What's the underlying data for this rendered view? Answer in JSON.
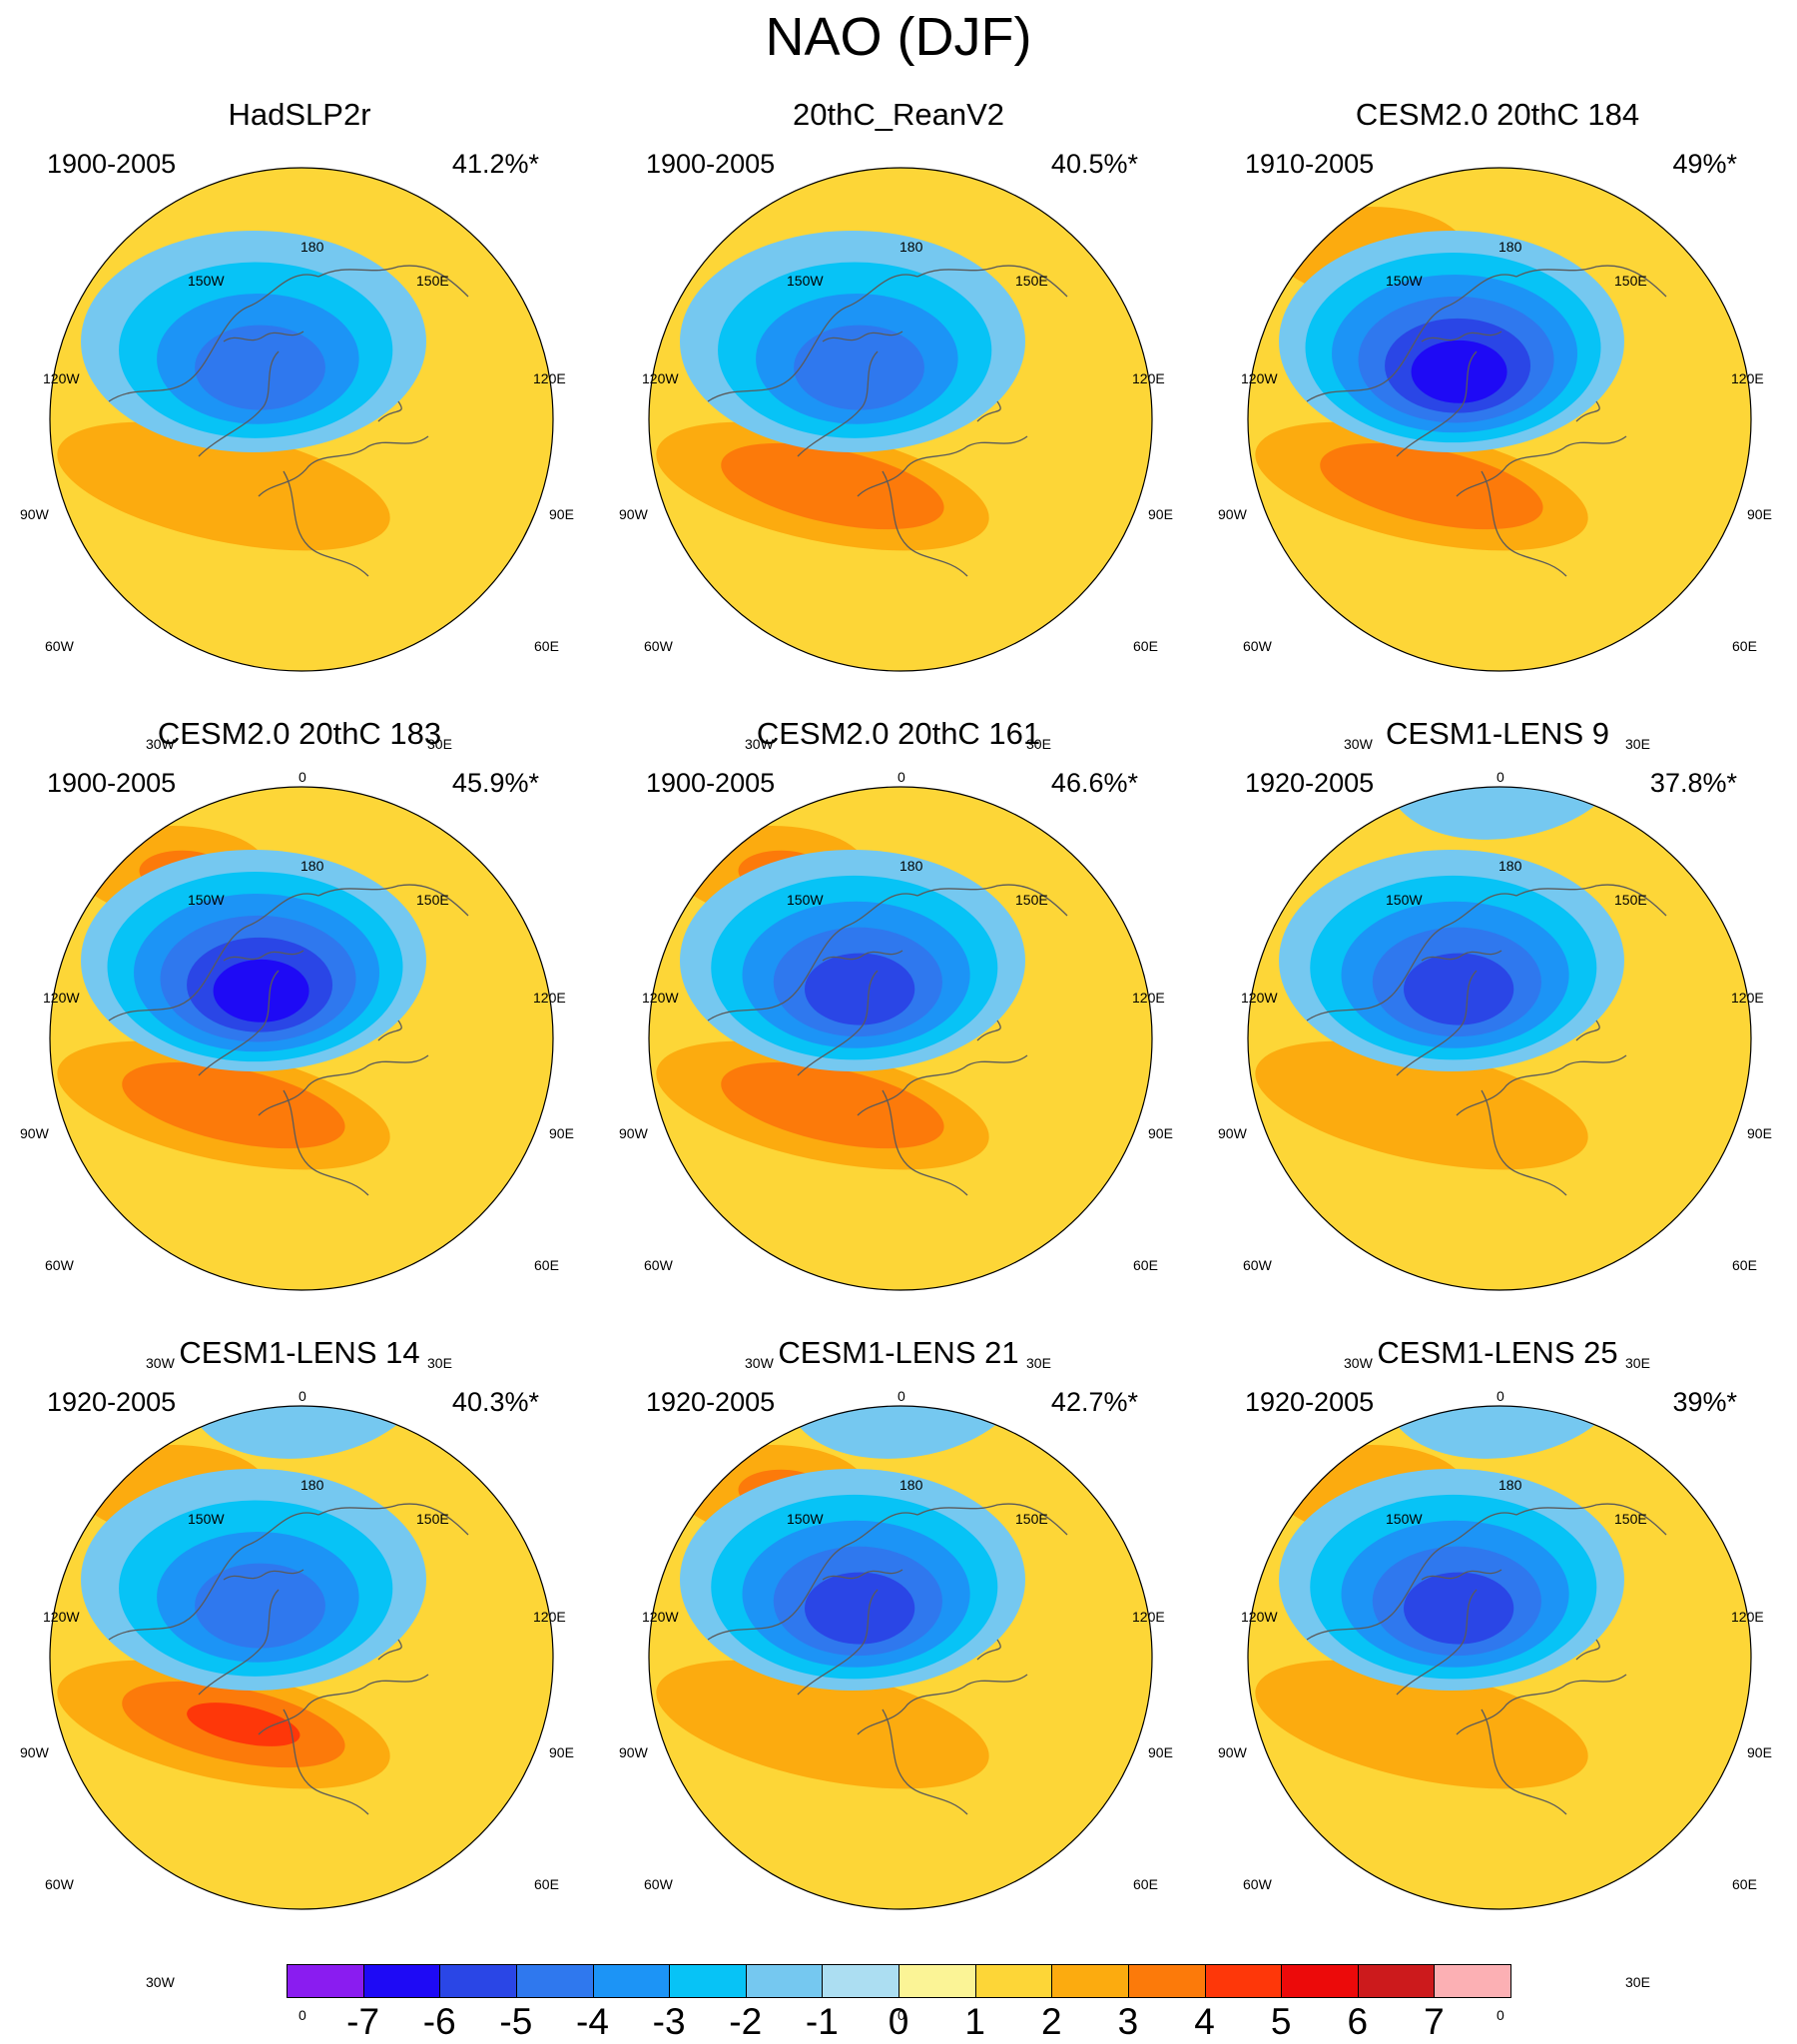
{
  "title": "NAO (DJF)",
  "lon_labels": [
    "180",
    "150W",
    "150E",
    "120W",
    "120E",
    "90W",
    "90E",
    "60W",
    "60E",
    "30W",
    "30E",
    "0"
  ],
  "panels": [
    {
      "name": "HadSLP2r",
      "period": "1900-2005",
      "pct": "41.2%*",
      "pacific_pos": false,
      "pacific_peak": 0,
      "neg_min": -4,
      "pos_max": 2,
      "ne_blue": false,
      "nw_blue": false
    },
    {
      "name": "20thC_ReanV2",
      "period": "1900-2005",
      "pct": "40.5%*",
      "pacific_pos": false,
      "pacific_peak": 0,
      "neg_min": -4,
      "pos_max": 3,
      "ne_blue": true,
      "nw_blue": false
    },
    {
      "name": "CESM2.0 20thC 184",
      "period": "1910-2005",
      "pct": "49%*",
      "pacific_pos": true,
      "pacific_peak": 1,
      "neg_min": -6,
      "pos_max": 3,
      "ne_blue": true,
      "nw_blue": false
    },
    {
      "name": "CESM2.0 20thC 183",
      "period": "1900-2005",
      "pct": "45.9%*",
      "pacific_pos": true,
      "pacific_peak": 2,
      "neg_min": -6,
      "pos_max": 3,
      "ne_blue": false,
      "nw_blue": false
    },
    {
      "name": "CESM2.0 20thC 161",
      "period": "1900-2005",
      "pct": "46.6%*",
      "pacific_pos": true,
      "pacific_peak": 2,
      "neg_min": -5,
      "pos_max": 3,
      "ne_blue": true,
      "nw_blue": false
    },
    {
      "name": "CESM1-LENS 9",
      "period": "1920-2005",
      "pct": "37.8%*",
      "pacific_pos": false,
      "pacific_peak": 0,
      "neg_min": -5,
      "pos_max": 2,
      "ne_blue": true,
      "nw_blue": true
    },
    {
      "name": "CESM1-LENS 14",
      "period": "1920-2005",
      "pct": "40.3%*",
      "pacific_pos": true,
      "pacific_peak": 1,
      "neg_min": -4,
      "pos_max": 4,
      "ne_blue": true,
      "nw_blue": true
    },
    {
      "name": "CESM1-LENS 21",
      "period": "1920-2005",
      "pct": "42.7%*",
      "pacific_pos": true,
      "pacific_peak": 2,
      "neg_min": -5,
      "pos_max": 2,
      "ne_blue": true,
      "nw_blue": true
    },
    {
      "name": "CESM1-LENS 25",
      "period": "1920-2005",
      "pct": "39%*",
      "pacific_pos": true,
      "pacific_peak": 1,
      "neg_min": -5,
      "pos_max": 2,
      "ne_blue": true,
      "nw_blue": true
    }
  ],
  "colorbar": {
    "labels": [
      "-7",
      "-6",
      "-5",
      "-4",
      "-3",
      "-2",
      "-1",
      "0",
      "1",
      "2",
      "3",
      "4",
      "5",
      "6",
      "7"
    ],
    "colors": [
      "#8a1cf0",
      "#1e0af5",
      "#2a46e6",
      "#2f78ee",
      "#1c94f6",
      "#07c3f6",
      "#75c8f0",
      "#acdef2",
      "#fbf496",
      "#fdd637",
      "#fcab0f",
      "#fc7a0a",
      "#fe3709",
      "#ec0a0a",
      "#cc1a1c",
      "#fcb0b4"
    ]
  }
}
